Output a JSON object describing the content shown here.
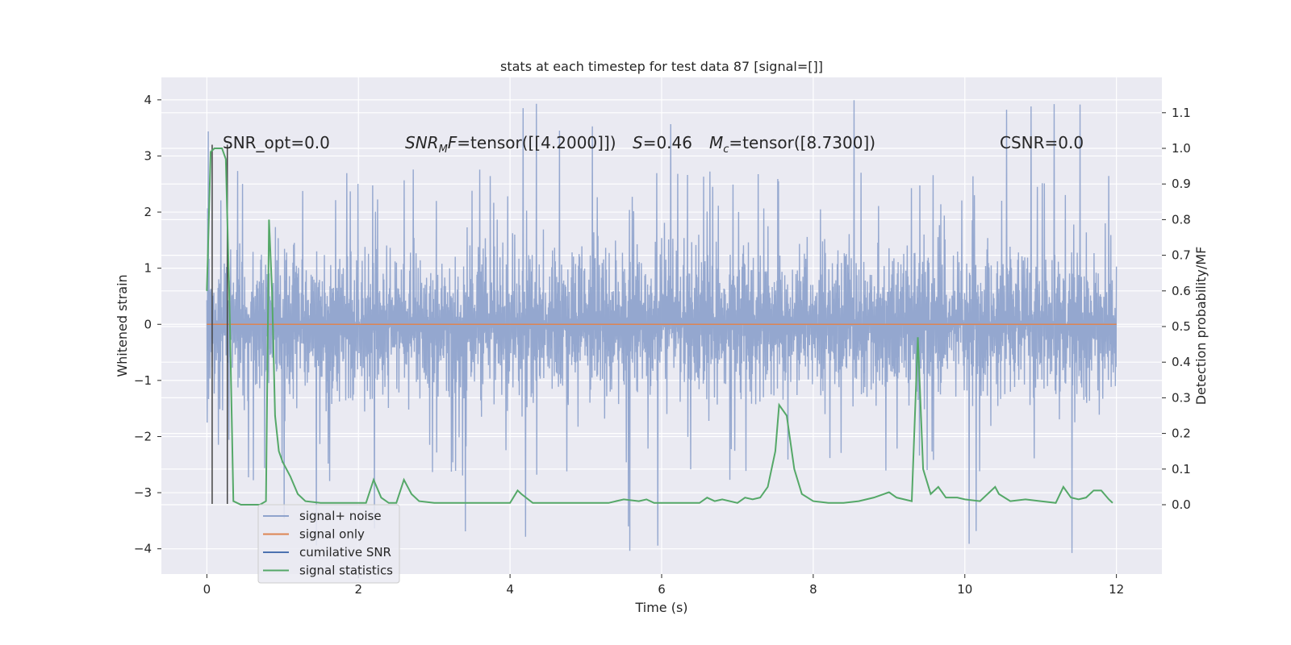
{
  "chart_data": {
    "type": "line",
    "title": "stats at each timestep for test data 87 [signal=[]]",
    "xlabel": "Time (s)",
    "ylabel_left": "Whitened strain",
    "ylabel_right": "Detection probability/MF",
    "xlim": [
      -0.6,
      12.6
    ],
    "ylim_left": [
      -4.45,
      4.4
    ],
    "ylim_right": [
      0.0,
      1.0
    ],
    "x_ticks": [
      0,
      2,
      4,
      6,
      8,
      10,
      12
    ],
    "x_tick_labels": [
      "0",
      "2",
      "4",
      "6",
      "8",
      "10",
      "12"
    ],
    "y_left_ticks": [
      -4,
      -3,
      -2,
      -1,
      0,
      1,
      2,
      3,
      4
    ],
    "y_left_tick_labels": [
      "−4",
      "−3",
      "−2",
      "−1",
      "0",
      "1",
      "2",
      "3",
      "4"
    ],
    "y_right_ticks": [
      0.0,
      0.1,
      0.2,
      0.3,
      0.4,
      0.5,
      0.6,
      0.7,
      0.8,
      0.9,
      1.0,
      1.1
    ],
    "y_right_tick_labels": [
      "0.0",
      "0.1",
      "0.2",
      "0.3",
      "0.4",
      "0.5",
      "0.6",
      "0.7",
      "0.8",
      "0.9",
      "1.0",
      "1.1"
    ],
    "grid": true,
    "legend_position": "lower-left",
    "annotations": {
      "snr_opt": "SNR_opt=0.0",
      "snr_mf_sym": "SNR",
      "snr_mf_sub": "M",
      "snr_mf_tail": "F",
      "snr_mf_val": "=tensor([[4.2000]])",
      "s_sym": "S",
      "s_val": "=0.46",
      "mc_sym": "M",
      "mc_sub": "c",
      "mc_val": "=tensor([8.7300])",
      "csnr": "CSNR=0.0"
    },
    "series": [
      {
        "name": "signal+ noise",
        "color": "#8fa3cc",
        "axis": "left",
        "x_range": [
          0,
          12
        ],
        "envelope": {
          "typical_max": 2.0,
          "typical_min": -2.0,
          "peak_max": 4.0,
          "peak_min": -4.1
        }
      },
      {
        "name": "signal only",
        "color": "#dd8452",
        "axis": "left",
        "x": [
          0,
          12
        ],
        "y": [
          0,
          0
        ]
      },
      {
        "name": "cumilative SNR",
        "color": "#4c72b0",
        "axis": "left",
        "x": [],
        "y": []
      },
      {
        "name": "signal statistics",
        "color": "#55a868",
        "axis": "right",
        "x": [
          0.0,
          0.05,
          0.1,
          0.15,
          0.2,
          0.25,
          0.3,
          0.35,
          0.4,
          0.45,
          0.5,
          0.6,
          0.7,
          0.78,
          0.82,
          0.86,
          0.9,
          0.95,
          1.0,
          1.1,
          1.2,
          1.3,
          1.5,
          1.7,
          1.9,
          2.1,
          2.2,
          2.3,
          2.4,
          2.5,
          2.6,
          2.7,
          2.8,
          3.0,
          3.2,
          3.4,
          3.6,
          3.8,
          4.0,
          4.1,
          4.15,
          4.3,
          4.5,
          4.7,
          4.9,
          5.1,
          5.3,
          5.5,
          5.7,
          5.8,
          5.9,
          6.1,
          6.3,
          6.5,
          6.6,
          6.7,
          6.8,
          7.0,
          7.1,
          7.2,
          7.3,
          7.4,
          7.5,
          7.55,
          7.65,
          7.75,
          7.85,
          8.0,
          8.2,
          8.4,
          8.6,
          8.8,
          9.0,
          9.1,
          9.3,
          9.38,
          9.45,
          9.55,
          9.65,
          9.75,
          9.9,
          10.0,
          10.2,
          10.4,
          10.45,
          10.6,
          10.8,
          11.0,
          11.2,
          11.3,
          11.4,
          11.5,
          11.6,
          11.7,
          11.8,
          11.9,
          11.95
        ],
        "y": [
          0.6,
          0.99,
          1.0,
          1.0,
          1.0,
          0.97,
          0.55,
          0.01,
          0.005,
          0.0,
          0.0,
          0.0,
          0.0,
          0.01,
          0.8,
          0.6,
          0.25,
          0.15,
          0.12,
          0.08,
          0.03,
          0.01,
          0.005,
          0.005,
          0.005,
          0.005,
          0.07,
          0.02,
          0.005,
          0.005,
          0.07,
          0.03,
          0.01,
          0.005,
          0.005,
          0.005,
          0.005,
          0.005,
          0.005,
          0.04,
          0.03,
          0.005,
          0.005,
          0.005,
          0.005,
          0.005,
          0.005,
          0.015,
          0.01,
          0.015,
          0.005,
          0.005,
          0.005,
          0.005,
          0.02,
          0.01,
          0.015,
          0.005,
          0.02,
          0.015,
          0.02,
          0.05,
          0.15,
          0.28,
          0.25,
          0.1,
          0.03,
          0.01,
          0.005,
          0.005,
          0.01,
          0.02,
          0.035,
          0.02,
          0.01,
          0.47,
          0.1,
          0.03,
          0.05,
          0.02,
          0.02,
          0.015,
          0.01,
          0.05,
          0.03,
          0.01,
          0.015,
          0.01,
          0.005,
          0.05,
          0.02,
          0.015,
          0.02,
          0.04,
          0.04,
          0.015,
          0.005
        ]
      }
    ],
    "vertical_lines": {
      "color": "#444444",
      "x": [
        0.07,
        0.27
      ],
      "y_bottom": -3.2,
      "y_top": 3.2
    }
  }
}
